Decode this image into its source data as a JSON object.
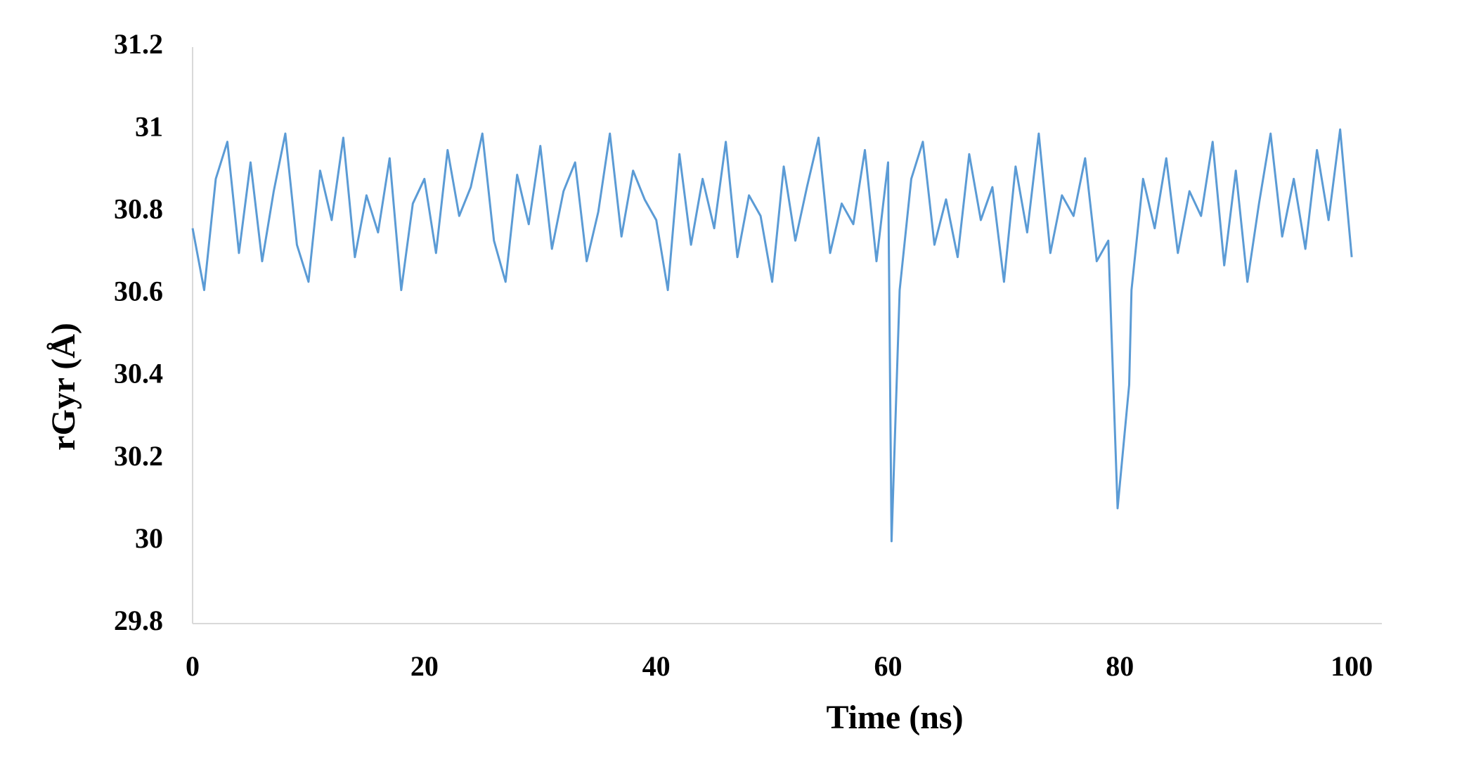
{
  "chart_data": {
    "type": "line",
    "xlabel": "Time (ns)",
    "ylabel": "rGyr (Å)",
    "color": "#5b9bd5",
    "grid": false,
    "x": [
      0,
      1,
      2,
      3,
      4,
      5,
      6,
      7,
      8,
      9,
      10,
      11,
      12,
      13,
      14,
      15,
      16,
      17,
      18,
      19,
      20,
      21,
      22,
      23,
      24,
      25,
      26,
      27,
      28,
      29,
      30,
      31,
      32,
      33,
      34,
      35,
      36,
      37,
      38,
      39,
      40,
      41,
      42,
      43,
      44,
      45,
      46,
      47,
      48,
      49,
      50,
      51,
      52,
      53,
      54,
      55,
      56,
      57,
      58,
      59,
      60,
      60.3,
      61,
      62,
      63,
      64,
      65,
      66,
      67,
      68,
      69,
      70,
      71,
      72,
      73,
      74,
      75,
      76,
      77,
      78,
      79,
      79.8,
      80.8,
      81,
      82,
      83,
      84,
      85,
      86,
      87,
      88,
      89,
      90,
      91,
      92,
      93,
      94,
      95,
      96,
      97,
      98,
      99,
      100
    ],
    "values": [
      30.76,
      30.61,
      30.88,
      30.97,
      30.7,
      30.92,
      30.68,
      30.85,
      30.99,
      30.72,
      30.63,
      30.9,
      30.78,
      30.98,
      30.69,
      30.84,
      30.75,
      30.93,
      30.61,
      30.82,
      30.88,
      30.7,
      30.95,
      30.79,
      30.86,
      30.99,
      30.73,
      30.63,
      30.89,
      30.77,
      30.96,
      30.71,
      30.85,
      30.92,
      30.68,
      30.8,
      30.99,
      30.74,
      30.9,
      30.83,
      30.78,
      30.61,
      30.94,
      30.72,
      30.88,
      30.76,
      30.97,
      30.69,
      30.84,
      30.79,
      30.63,
      30.91,
      30.73,
      30.86,
      30.98,
      30.7,
      30.82,
      30.77,
      30.95,
      30.68,
      30.92,
      30.0,
      30.61,
      30.88,
      30.97,
      30.72,
      30.83,
      30.69,
      30.94,
      30.78,
      30.86,
      30.63,
      30.91,
      30.75,
      30.99,
      30.7,
      30.84,
      30.79,
      30.93,
      30.68,
      30.73,
      30.08,
      30.38,
      30.61,
      30.88,
      30.76,
      30.93,
      30.7,
      30.85,
      30.79,
      30.97,
      30.67,
      30.9,
      30.63,
      30.82,
      30.99,
      30.74,
      30.88,
      30.71,
      30.95,
      30.78,
      31.0,
      30.69
    ],
    "xlim": [
      0,
      102.6
    ],
    "xticks": [
      0,
      20,
      40,
      60,
      80,
      100
    ],
    "ylim": [
      29.8,
      31.2
    ],
    "yticks": [
      29.8,
      30,
      30.2,
      30.4,
      30.6,
      30.8,
      31,
      31.2
    ]
  }
}
